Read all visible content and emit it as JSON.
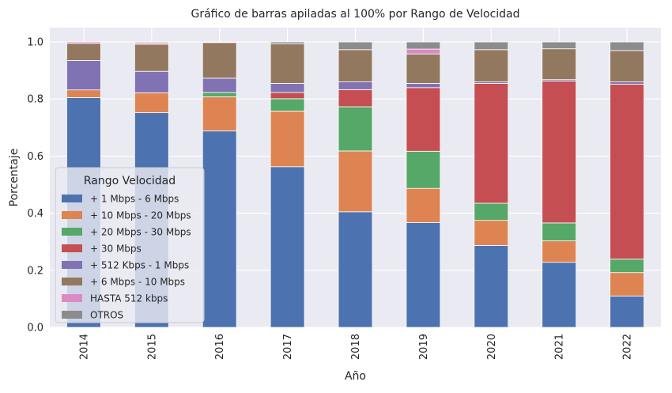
{
  "chart_data": {
    "type": "bar",
    "stacked": true,
    "title": "Gráfico de barras apiladas al 100% por Rango de Velocidad",
    "xlabel": "Año",
    "ylabel": "Porcentaje",
    "ylim": [
      0,
      1.05
    ],
    "yticks": [
      "0.0",
      "0.2",
      "0.4",
      "0.6",
      "0.8",
      "1.0"
    ],
    "grid": true,
    "legend_title": "Rango Velocidad",
    "legend_position": "center-left",
    "categories": [
      "2014",
      "2015",
      "2016",
      "2017",
      "2018",
      "2019",
      "2020",
      "2021",
      "2022"
    ],
    "series": [
      {
        "name": "+ 1 Mbps - 6 Mbps",
        "color": "#4c72b0",
        "values": [
          0.805,
          0.752,
          0.688,
          0.563,
          0.405,
          0.367,
          0.287,
          0.228,
          0.11
        ]
      },
      {
        "name": "+ 10 Mbps - 20 Mbps",
        "color": "#dd8452",
        "values": [
          0.027,
          0.07,
          0.12,
          0.195,
          0.213,
          0.12,
          0.088,
          0.075,
          0.082
        ]
      },
      {
        "name": "+ 20 Mbps - 30 Mbps",
        "color": "#55a868",
        "values": [
          0.0,
          0.0,
          0.015,
          0.043,
          0.155,
          0.13,
          0.06,
          0.063,
          0.047
        ]
      },
      {
        "name": "+ 30 Mbps",
        "color": "#c44e52",
        "values": [
          0.0,
          0.0,
          0.0,
          0.022,
          0.06,
          0.223,
          0.42,
          0.497,
          0.613
        ]
      },
      {
        "name": "+ 512 Kbps - 1 Mbps",
        "color": "#8172b3",
        "values": [
          0.103,
          0.075,
          0.05,
          0.032,
          0.027,
          0.015,
          0.005,
          0.005,
          0.008
        ]
      },
      {
        "name": "+ 6 Mbps - 10 Mbps",
        "color": "#937860",
        "values": [
          0.06,
          0.095,
          0.125,
          0.138,
          0.113,
          0.103,
          0.113,
          0.108,
          0.11
        ]
      },
      {
        "name": "HASTA 512 kbps",
        "color": "#da8bc3",
        "values": [
          0.005,
          0.005,
          0.0,
          0.0,
          0.0,
          0.017,
          0.0,
          0.0,
          0.0
        ]
      },
      {
        "name": "OTROS",
        "color": "#8c8c8c",
        "values": [
          0.0,
          0.003,
          0.002,
          0.007,
          0.027,
          0.025,
          0.027,
          0.024,
          0.03
        ]
      }
    ]
  }
}
